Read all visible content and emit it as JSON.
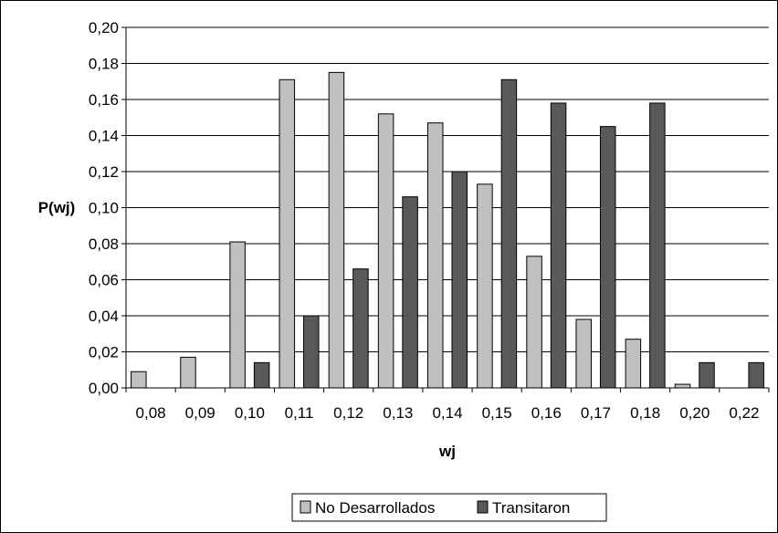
{
  "chart_data": {
    "type": "bar",
    "xlabel": "wj",
    "ylabel": "P(wj)",
    "categories": [
      "0,08",
      "0,09",
      "0,10",
      "0,11",
      "0,12",
      "0,13",
      "0,14",
      "0,15",
      "0,16",
      "0,17",
      "0,18",
      "0,20",
      "0,22"
    ],
    "ylim": [
      0,
      0.2
    ],
    "yticks": [
      "0,00",
      "0,02",
      "0,04",
      "0,06",
      "0,08",
      "0,10",
      "0,12",
      "0,14",
      "0,16",
      "0,18",
      "0,20"
    ],
    "grid": true,
    "legend_position": "bottom",
    "series": [
      {
        "name": "No Desarrollados",
        "color": "#c0c0c0",
        "values": [
          0.009,
          0.017,
          0.081,
          0.171,
          0.175,
          0.152,
          0.147,
          0.113,
          0.073,
          0.038,
          0.027,
          0.002,
          0.0
        ]
      },
      {
        "name": "Transitaron",
        "color": "#595959",
        "values": [
          0.0,
          0.0,
          0.014,
          0.04,
          0.066,
          0.106,
          0.12,
          0.171,
          0.158,
          0.145,
          0.158,
          0.014,
          0.014
        ]
      }
    ]
  }
}
